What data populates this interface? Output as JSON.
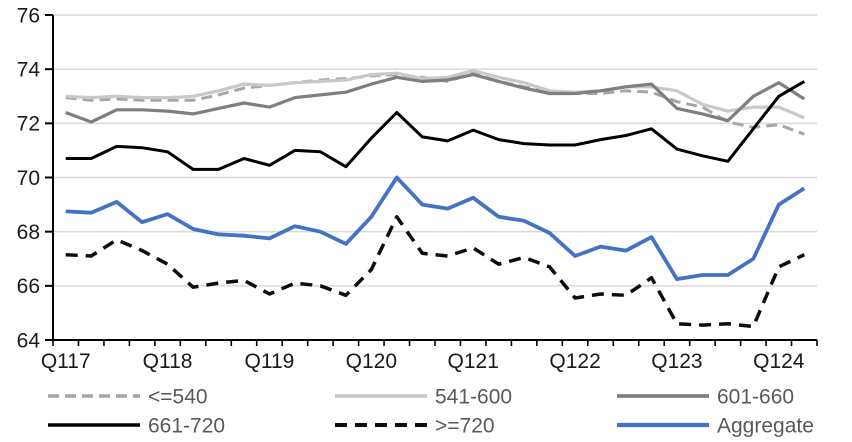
{
  "chart_data": {
    "type": "line",
    "title": "",
    "grid": true,
    "legend_position": "bottom",
    "background": "#ffffff",
    "y_axis": {
      "min": 64,
      "max": 76,
      "tick_step": 2,
      "tick_labels": [
        "64",
        "66",
        "68",
        "70",
        "72",
        "74",
        "76"
      ]
    },
    "x_axis": {
      "tick_labels": [
        "Q117",
        "Q118",
        "Q119",
        "Q120",
        "Q121",
        "Q122",
        "Q123",
        "Q124"
      ],
      "points_per_label": 4,
      "n_points": 30
    },
    "series": [
      {
        "name": "<=540",
        "color": "#a6a6a6",
        "style": "dashed",
        "dash": "11 6",
        "width": 3,
        "values": [
          72.95,
          72.85,
          72.9,
          72.85,
          72.85,
          72.85,
          73.05,
          73.3,
          73.4,
          73.5,
          73.6,
          73.65,
          73.75,
          73.8,
          73.7,
          73.55,
          73.85,
          73.55,
          73.35,
          73.2,
          73.1,
          73.1,
          73.2,
          73.15,
          72.8,
          72.6,
          72.05,
          71.85,
          71.95,
          71.6
        ]
      },
      {
        "name": "541-600",
        "color": "#c9c9c9",
        "style": "solid",
        "dash": null,
        "width": 3.2,
        "values": [
          73.0,
          72.95,
          73.0,
          72.95,
          72.95,
          73.0,
          73.2,
          73.45,
          73.4,
          73.5,
          73.55,
          73.6,
          73.8,
          73.85,
          73.65,
          73.7,
          73.95,
          73.7,
          73.5,
          73.2,
          73.15,
          73.2,
          73.35,
          73.35,
          73.2,
          72.7,
          72.45,
          72.6,
          72.6,
          72.2
        ]
      },
      {
        "name": "601-660",
        "color": "#7f7f7f",
        "style": "solid",
        "dash": null,
        "width": 3.2,
        "values": [
          72.4,
          72.05,
          72.5,
          72.5,
          72.45,
          72.35,
          72.55,
          72.75,
          72.6,
          72.95,
          73.05,
          73.15,
          73.45,
          73.7,
          73.55,
          73.6,
          73.8,
          73.55,
          73.3,
          73.1,
          73.1,
          73.2,
          73.35,
          73.45,
          72.55,
          72.35,
          72.1,
          73.0,
          73.5,
          72.9
        ]
      },
      {
        "name": "661-720",
        "color": "#000000",
        "style": "solid",
        "dash": null,
        "width": 3,
        "values": [
          70.7,
          70.7,
          71.15,
          71.1,
          70.95,
          70.3,
          70.3,
          70.7,
          70.45,
          71.0,
          70.95,
          70.4,
          71.45,
          72.4,
          71.5,
          71.35,
          71.75,
          71.4,
          71.25,
          71.2,
          71.2,
          71.4,
          71.55,
          71.8,
          71.05,
          70.8,
          70.6,
          71.8,
          73.0,
          73.55
        ]
      },
      {
        "name": ">=720",
        "color": "#0d0d0d",
        "style": "dashed",
        "dash": "12 8",
        "width": 3.5,
        "values": [
          67.15,
          67.1,
          67.7,
          67.3,
          66.8,
          65.95,
          66.1,
          66.2,
          65.7,
          66.1,
          66.0,
          65.65,
          66.6,
          68.55,
          67.2,
          67.1,
          67.4,
          66.8,
          67.05,
          66.7,
          65.55,
          65.7,
          65.65,
          66.3,
          64.6,
          64.55,
          64.6,
          64.5,
          66.7,
          67.15
        ]
      },
      {
        "name": "Aggregate",
        "color": "#4472c4",
        "style": "solid",
        "dash": null,
        "width": 3.8,
        "values": [
          68.75,
          68.7,
          69.1,
          68.35,
          68.65,
          68.1,
          67.9,
          67.85,
          67.75,
          68.2,
          68.0,
          67.55,
          68.55,
          70.0,
          69.0,
          68.85,
          69.25,
          68.55,
          68.4,
          67.95,
          67.1,
          67.45,
          67.3,
          67.8,
          66.25,
          66.4,
          66.4,
          67.0,
          69.0,
          69.6
        ]
      }
    ],
    "legend_rows": [
      [
        "<=540",
        "541-600",
        "601-660"
      ],
      [
        "661-720",
        ">=720",
        "Aggregate"
      ]
    ]
  },
  "colors": {
    "gridline": "#d9d9d9",
    "axis": "#000000",
    "axis_label": "#1a1a1a",
    "legend_text": "#595959"
  }
}
